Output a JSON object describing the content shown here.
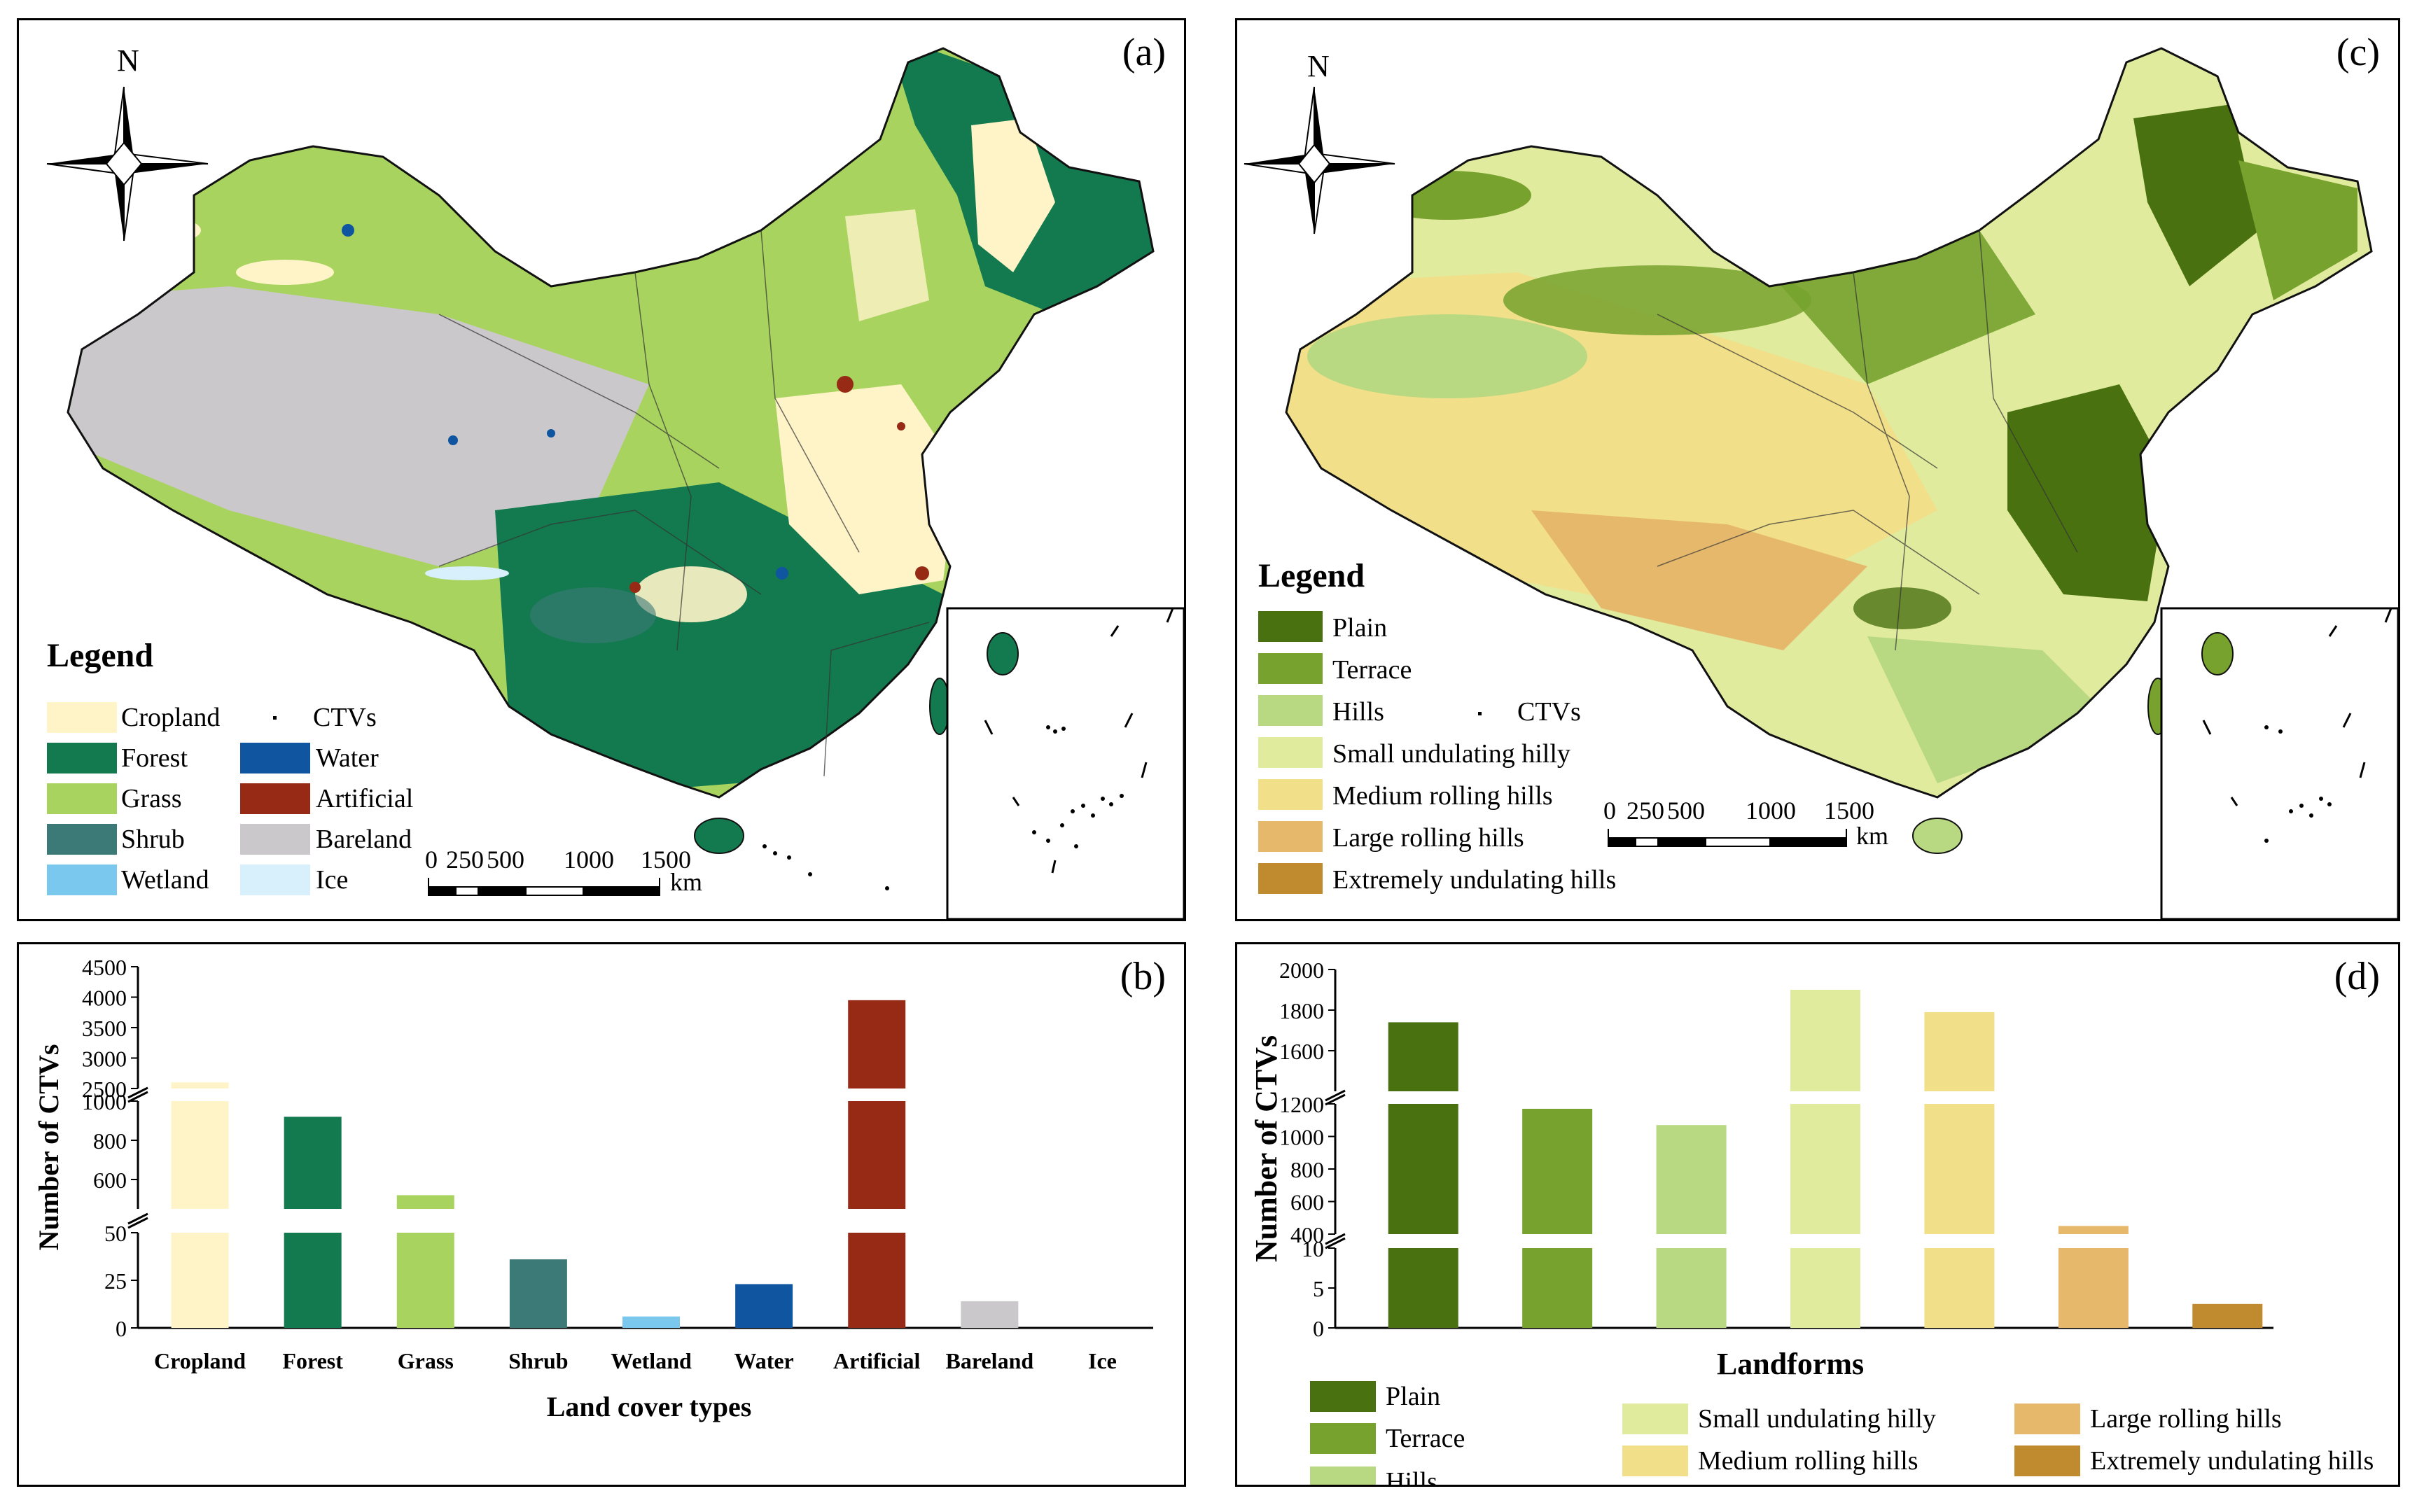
{
  "panels": {
    "a": {
      "label": "(a)",
      "north": "N",
      "legend_title": "Legend",
      "legend": [
        {
          "name": "Cropland",
          "color": "#fff4c8"
        },
        {
          "name": "Forest",
          "color": "#137a4f"
        },
        {
          "name": "Grass",
          "color": "#a9d35f"
        },
        {
          "name": "Shrub",
          "color": "#3c7a78"
        },
        {
          "name": "Wetland",
          "color": "#7ac8ee"
        },
        {
          "name": "CTVs",
          "color": "#000000"
        },
        {
          "name": "Water",
          "color": "#0f55a0"
        },
        {
          "name": "Artificial",
          "color": "#962a14"
        },
        {
          "name": "Bareland",
          "color": "#cbc8cb"
        },
        {
          "name": "Ice",
          "color": "#d8f0fb"
        }
      ],
      "scale_ticks": [
        "0",
        "250",
        "500",
        "1000",
        "1500"
      ],
      "scale_unit": "km"
    },
    "c": {
      "label": "(c)",
      "north": "N",
      "legend_title": "Legend",
      "legend": [
        {
          "name": "Plain",
          "color": "#4a7110"
        },
        {
          "name": "Terrace",
          "color": "#76a22d"
        },
        {
          "name": "Hills",
          "color": "#b8d981"
        },
        {
          "name": "CTVs",
          "color": "#000000"
        },
        {
          "name": "Small undulating hilly",
          "color": "#e0eb9e"
        },
        {
          "name": "Medium rolling hills",
          "color": "#f1df8a"
        },
        {
          "name": "Large rolling hills",
          "color": "#e6b86c"
        },
        {
          "name": "Extremely undulating hills",
          "color": "#c08a2e"
        }
      ],
      "scale_ticks": [
        "0",
        "250",
        "500",
        "1000",
        "1500"
      ],
      "scale_unit": "km"
    },
    "b": {
      "label": "(b)"
    },
    "d": {
      "label": "(d)"
    }
  },
  "chart_data": [
    {
      "type": "bar",
      "panel": "b",
      "xlabel": "Land cover types",
      "ylabel": "Number of CTVs",
      "categories": [
        "Cropland",
        "Forest",
        "Grass",
        "Shrub",
        "Wetland",
        "Water",
        "Artificial",
        "Bareland",
        "Ice"
      ],
      "values": [
        2600,
        920,
        520,
        36,
        6,
        23,
        3950,
        14,
        0
      ],
      "colors": [
        "#fff4c8",
        "#137a4f",
        "#a9d35f",
        "#3c7a78",
        "#7ac8ee",
        "#0f55a0",
        "#962a14",
        "#cbc8cb",
        "#d8f0fb"
      ],
      "axis_breaks": [
        {
          "range": [
            0,
            50
          ],
          "ticks": [
            "0",
            "25",
            "50"
          ]
        },
        {
          "range": [
            450,
            1000
          ],
          "ticks": [
            "600",
            "800",
            "1000"
          ]
        },
        {
          "range": [
            2500,
            4500
          ],
          "ticks": [
            "2500",
            "3000",
            "3500",
            "4000",
            "4500"
          ]
        }
      ]
    },
    {
      "type": "bar",
      "panel": "d",
      "xlabel": "Landforms",
      "ylabel": "Number of CTVs",
      "categories": [
        "Plain",
        "Terrace",
        "Hills",
        "Small undulating hilly",
        "Medium rolling hills",
        "Large rolling hills",
        "Extremely undulating hills"
      ],
      "values": [
        1740,
        1170,
        1070,
        1900,
        1790,
        450,
        3
      ],
      "colors": [
        "#4a7110",
        "#76a22d",
        "#b8d981",
        "#e0eb9e",
        "#f1df8a",
        "#e6b86c",
        "#c08a2e"
      ],
      "axis_breaks": [
        {
          "range": [
            0,
            10
          ],
          "ticks": [
            "0",
            "5",
            "10"
          ]
        },
        {
          "range": [
            400,
            1200
          ],
          "ticks": [
            "400",
            "600",
            "800",
            "1000",
            "1200"
          ]
        },
        {
          "range": [
            1400,
            2000
          ],
          "ticks": [
            "1600",
            "1800",
            "2000"
          ]
        }
      ],
      "legend": [
        {
          "name": "Plain",
          "color": "#4a7110"
        },
        {
          "name": "Terrace",
          "color": "#76a22d"
        },
        {
          "name": "Hills",
          "color": "#b8d981"
        },
        {
          "name": "Small undulating hilly",
          "color": "#e0eb9e"
        },
        {
          "name": "Medium rolling hills",
          "color": "#f1df8a"
        },
        {
          "name": "Large rolling hills",
          "color": "#e6b86c"
        },
        {
          "name": "Extremely undulating hills",
          "color": "#c08a2e"
        }
      ]
    }
  ]
}
